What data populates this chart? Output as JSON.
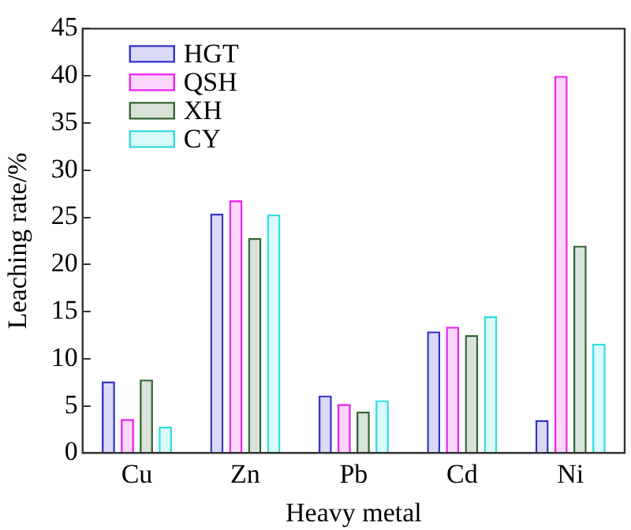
{
  "chart_data": {
    "type": "bar",
    "xlabel": "Heavy metal",
    "ylabel": "Leaching rate/%",
    "categories": [
      "Cu",
      "Zn",
      "Pb",
      "Cd",
      "Ni"
    ],
    "series": [
      {
        "name": "HGT",
        "color": "#3333cc",
        "values": [
          7.6,
          25.4,
          6.1,
          12.9,
          3.5
        ]
      },
      {
        "name": "QSH",
        "color": "#ee22ee",
        "values": [
          3.6,
          26.8,
          5.2,
          13.4,
          40
        ]
      },
      {
        "name": "XH",
        "color": "#336633",
        "values": [
          7.8,
          22.8,
          4.4,
          12.5,
          22
        ]
      },
      {
        "name": "CY",
        "color": "#33dddd",
        "values": [
          2.8,
          25.3,
          5.6,
          14.5,
          11.6
        ]
      }
    ],
    "ylim": [
      0,
      45
    ],
    "yticks": [
      0,
      5,
      10,
      15,
      20,
      25,
      30,
      35,
      40,
      45
    ],
    "grid": false,
    "legend": "top left"
  }
}
